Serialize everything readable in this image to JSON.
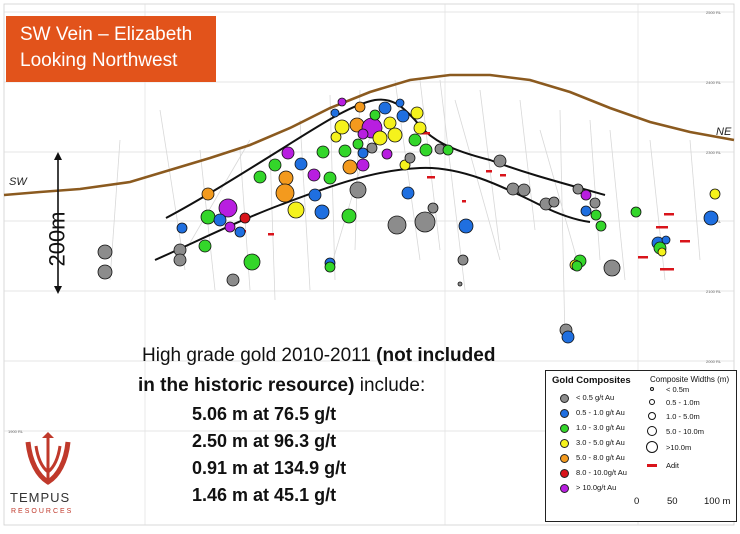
{
  "title": {
    "line1": "SW Vein – Elizabeth",
    "line2": "Looking Northwest"
  },
  "direction_left": "SW",
  "direction_right": "NE",
  "scale_label": "200m",
  "highlight": {
    "intro_line1_regular": "High grade gold 2010-2011 ",
    "intro_line1_bold": "(not included",
    "intro_line2_bold": "in the historic resource)",
    "intro_line2_regular": " include:",
    "results": [
      "5.06 m at 76.5 g/t",
      "2.50 m at 96.3 g/t",
      "0.91 m at 134.9 g/t",
      "1.46 m at 45.1 g/t"
    ]
  },
  "legend": {
    "title": "Gold Composites",
    "widths_title": "Composite Widths (m)",
    "grades": [
      {
        "label": "< 0.5 g/t Au",
        "color": "#8c8c8c"
      },
      {
        "label": "0.5 - 1.0 g/t Au",
        "color": "#1f6fe0"
      },
      {
        "label": "1.0 - 3.0 g/t Au",
        "color": "#33d62a"
      },
      {
        "label": "3.0 - 5.0 g/t Au",
        "color": "#f5f21c"
      },
      {
        "label": "5.0 - 8.0 g/t Au",
        "color": "#f39a1e"
      },
      {
        "label": "8.0 - 10.0g/t Au",
        "color": "#d9141b"
      },
      {
        "label": "> 10.0g/t Au",
        "color": "#b81ee0"
      }
    ],
    "widths": [
      "< 0.5m",
      "0.5 - 1.0m",
      "1.0 - 5.0m",
      "5.0 - 10.0m",
      ">10.0m"
    ],
    "adit_label": "Adit",
    "adit_color": "#d9141b",
    "scale_ticks": [
      "0",
      "50",
      "100 m"
    ]
  },
  "elevation_labels": [
    "2500 RL",
    "2400 RL",
    "2300 RL",
    "2200 RL",
    "2100 RL",
    "2000 RL",
    "1900 RL"
  ],
  "logo": {
    "name": "TEMPUS",
    "sub": "RESOURCES"
  },
  "colors": {
    "title_bg": "#e2531b",
    "topography": "#8b5a1f",
    "vein": "#000000"
  }
}
